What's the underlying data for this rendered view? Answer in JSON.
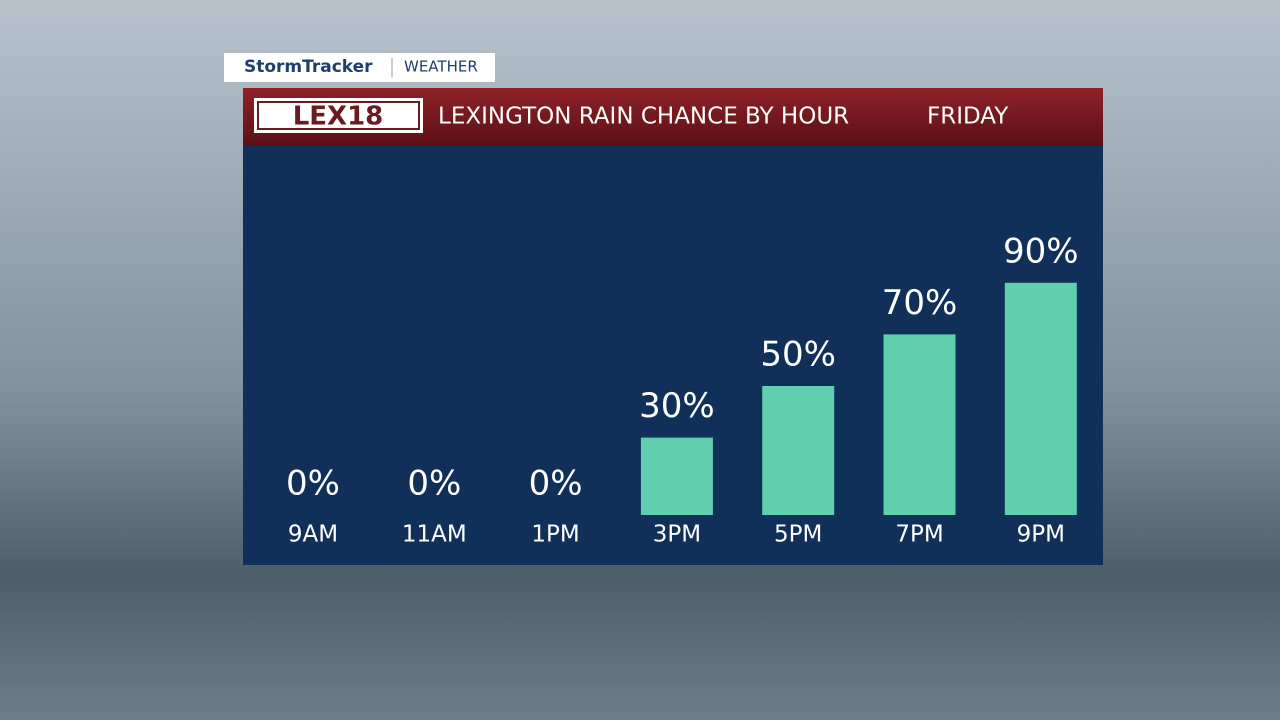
{
  "brand": {
    "program": "StormTracker",
    "section": "WEATHER",
    "logo": "LEX18"
  },
  "chart_data": {
    "type": "bar",
    "title": "LEXINGTON RAIN CHANCE BY HOUR",
    "subtitle": "FRIDAY",
    "categories": [
      "9AM",
      "11AM",
      "1PM",
      "3PM",
      "5PM",
      "7PM",
      "9PM"
    ],
    "values": [
      0,
      0,
      0,
      30,
      50,
      70,
      90
    ],
    "value_labels": [
      "0%",
      "0%",
      "0%",
      "30%",
      "50%",
      "70%",
      "90%"
    ],
    "color": "#5fcfad"
  }
}
